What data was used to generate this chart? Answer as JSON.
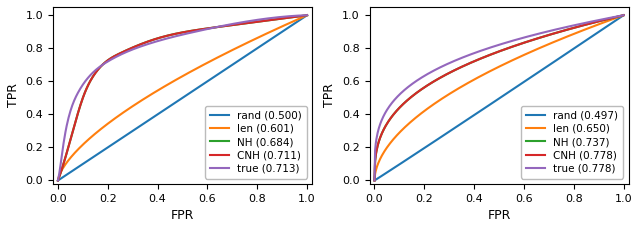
{
  "plot1": {
    "xlabel": "FPR",
    "ylabel": "TPR",
    "legend": [
      {
        "label": "rand (0.500)",
        "color": "#1f77b4",
        "auc": 0.5
      },
      {
        "label": "len (0.601)",
        "color": "#ff7f0e",
        "auc": 0.601
      },
      {
        "label": "NH (0.684)",
        "color": "#2ca02c",
        "auc": 0.684
      },
      {
        "label": "CNH (0.711)",
        "color": "#d62728",
        "auc": 0.711
      },
      {
        "label": "true (0.713)",
        "color": "#9467bd",
        "auc": 0.713
      }
    ]
  },
  "plot2": {
    "xlabel": "FPR",
    "ylabel": "TPR",
    "legend": [
      {
        "label": "rand (0.497)",
        "color": "#1f77b4",
        "auc": 0.497
      },
      {
        "label": "len (0.650)",
        "color": "#ff7f0e",
        "auc": 0.65
      },
      {
        "label": "NH (0.737)",
        "color": "#2ca02c",
        "auc": 0.737
      },
      {
        "label": "CNH (0.778)",
        "color": "#d62728",
        "auc": 0.778
      },
      {
        "label": "true (0.778)",
        "color": "#9467bd",
        "auc": 0.7785
      }
    ]
  },
  "figsize": [
    6.4,
    2.29
  ],
  "dpi": 100,
  "linewidth": 1.5
}
